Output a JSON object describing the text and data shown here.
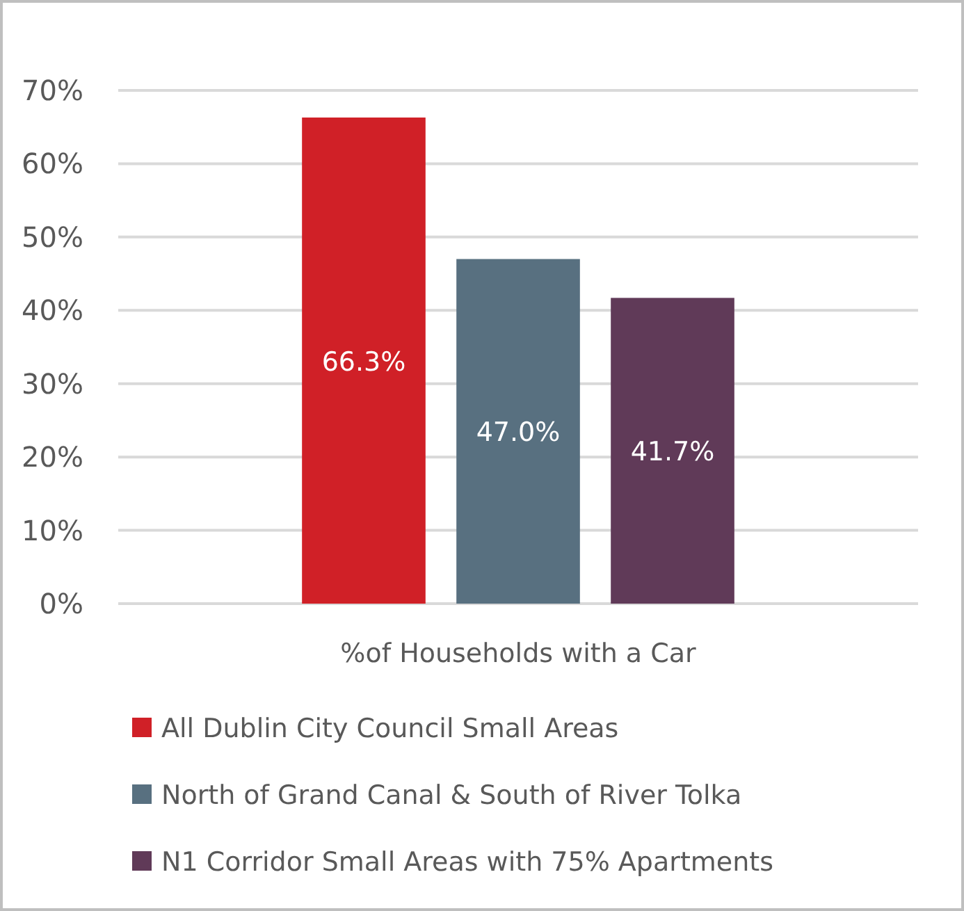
{
  "chart_data": {
    "type": "bar",
    "categories": [
      "%of Households with a Car"
    ],
    "series": [
      {
        "name": "All Dublin City Council Small Areas",
        "color": "#d02027",
        "values": [
          66.3
        ],
        "value_labels": [
          "66.3%"
        ]
      },
      {
        "name": "North of Grand Canal & South of River Tolka",
        "color": "#587080",
        "values": [
          47.0
        ],
        "value_labels": [
          "47.0%"
        ]
      },
      {
        "name": "N1 Corridor Small Areas with 75% Apartments",
        "color": "#603a58",
        "values": [
          41.7
        ],
        "value_labels": [
          "41.7%"
        ]
      }
    ],
    "ylim": [
      0,
      70
    ],
    "yticks": [
      {
        "value": 0,
        "label": "0%"
      },
      {
        "value": 10,
        "label": "10%"
      },
      {
        "value": 20,
        "label": "20%"
      },
      {
        "value": 30,
        "label": "30%"
      },
      {
        "value": 40,
        "label": "40%"
      },
      {
        "value": 50,
        "label": "50%"
      },
      {
        "value": 60,
        "label": "60%"
      },
      {
        "value": 70,
        "label": "70%"
      }
    ],
    "grid": "y",
    "legend": "bottom"
  }
}
